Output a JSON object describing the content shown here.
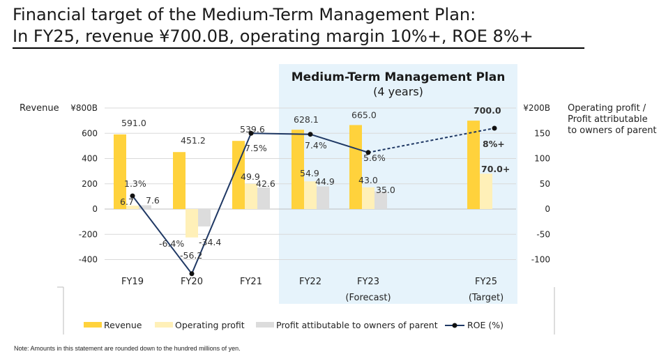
{
  "title_line1": "Financial target of the Medium-Term Management Plan:",
  "title_line2": "In FY25, revenue ¥700.0B, operating margin 10%+, ROE 8%+",
  "note": "Note: Amounts in this statement are rounded down to the hundred millions of yen.",
  "chart_data": {
    "type": "bar",
    "categories": [
      "FY19",
      "FY20",
      "FY21",
      "FY22",
      "FY23",
      "FY25"
    ],
    "category_sublabels": [
      "",
      "",
      "",
      "",
      "(Forecast)",
      "(Target)"
    ],
    "series": [
      {
        "name": "Revenue",
        "axis": "left",
        "color": "#FFD23C",
        "values": [
          591.0,
          451.2,
          539.6,
          628.1,
          665.0,
          700.0
        ],
        "labels": [
          "591.0",
          "451.2",
          "539.6",
          "628.1",
          "665.0",
          "700.0"
        ]
      },
      {
        "name": "Operating profit",
        "axis": "right",
        "color": "#FFF0B8",
        "values": [
          6.7,
          -56.2,
          49.9,
          54.9,
          43.0,
          70.0
        ],
        "labels": [
          "6.7",
          "-56.2",
          "49.9",
          "54.9",
          "43.0",
          "70.0+"
        ]
      },
      {
        "name": "Profit attibutable to owners of parent",
        "axis": "right",
        "color": "#DCDCDC",
        "values": [
          7.6,
          -34.4,
          42.6,
          44.9,
          35.0,
          null
        ],
        "labels": [
          "7.6",
          "-34.4",
          "42.6",
          "44.9",
          "35.0",
          ""
        ]
      },
      {
        "name": "ROE (%)",
        "type": "line",
        "axis": "right-percent",
        "color": "#1F3864",
        "values": [
          1.3,
          -6.4,
          7.5,
          7.4,
          5.6,
          8.0
        ],
        "labels": [
          "1.3%",
          "-6.4%",
          "7.5%",
          "7.4%",
          "5.6%",
          "8%+"
        ],
        "dashed_from_category": "FY23"
      }
    ],
    "left_axis": {
      "label": "Revenue",
      "ticks": [
        "¥800B",
        "600",
        "400",
        "200",
        "0",
        "-200",
        "-400"
      ],
      "range": [
        -400,
        800
      ]
    },
    "right_axis": {
      "label": "Operating profit / Profit attributable to owners of parent",
      "label_lines": [
        "Operating profit /",
        "Profit attributable",
        "to owners of parent"
      ],
      "ticks": [
        "¥200B",
        "150",
        "100",
        "50",
        "0",
        "-50",
        "-100"
      ],
      "range": [
        -100,
        200
      ]
    },
    "highlight": {
      "title": "Medium-Term Management Plan",
      "subtitle": "(4 years)",
      "from": "FY22",
      "to": "FY25",
      "color": "#E6F3FB"
    },
    "legend": [
      "Revenue",
      "Operating profit",
      "Profit attibutable to owners of parent",
      "ROE (%)"
    ],
    "legend_position": "bottom",
    "grid": true
  }
}
